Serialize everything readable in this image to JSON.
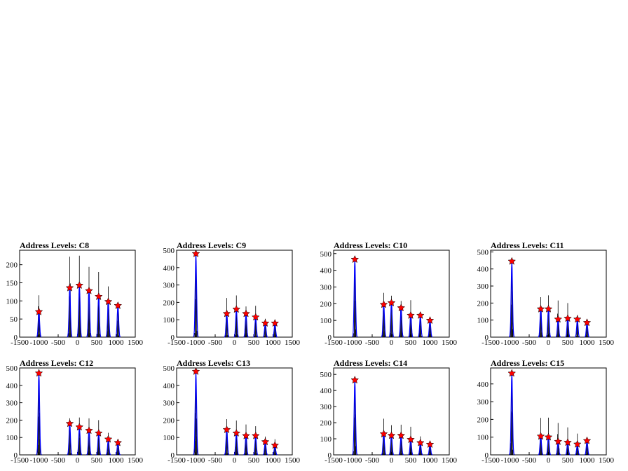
{
  "colors": {
    "histogram_outline": "#000000",
    "histogram_fit": "#0000ff",
    "marker": "#ff0000",
    "frame": "#000000"
  },
  "chart_data": [
    {
      "type": "bar",
      "title": "Address Levels: C8",
      "xlim": [
        -1500,
        1500
      ],
      "ylim": [
        0,
        240
      ],
      "x_ticks": [
        -1500,
        -1000,
        -500,
        0,
        500,
        1000,
        1500
      ],
      "y_ticks": [
        0,
        50,
        100,
        150,
        200
      ],
      "x": [
        -1000,
        -200,
        50,
        300,
        550,
        800,
        1050
      ],
      "peak_max": [
        130,
        222,
        225,
        198,
        180,
        140,
        95
      ],
      "marker_y": [
        70,
        136,
        143,
        128,
        112,
        98,
        87
      ]
    },
    {
      "type": "bar",
      "title": "Address Levels: C9",
      "xlim": [
        -1500,
        1500
      ],
      "ylim": [
        0,
        500
      ],
      "x_ticks": [
        -1500,
        -1000,
        -500,
        0,
        500,
        1000,
        1500
      ],
      "y_ticks": [
        0,
        100,
        200,
        300,
        400,
        500
      ],
      "x": [
        -1000,
        -200,
        50,
        300,
        550,
        800,
        1050
      ],
      "peak_max": [
        480,
        245,
        240,
        200,
        180,
        110,
        95
      ],
      "marker_y": [
        480,
        135,
        160,
        135,
        115,
        80,
        80
      ]
    },
    {
      "type": "bar",
      "title": "Address Levels: C10",
      "xlim": [
        -1500,
        1500
      ],
      "ylim": [
        0,
        520
      ],
      "x_ticks": [
        -1500,
        -1000,
        -500,
        0,
        500,
        1000,
        1500
      ],
      "y_ticks": [
        0,
        100,
        200,
        300,
        400,
        500
      ],
      "x": [
        -950,
        -200,
        0,
        250,
        500,
        750,
        1000
      ],
      "peak_max": [
        465,
        265,
        250,
        240,
        225,
        150,
        115
      ],
      "marker_y": [
        465,
        195,
        205,
        175,
        130,
        130,
        100
      ]
    },
    {
      "type": "bar",
      "title": "Address Levels: C11",
      "xlim": [
        -1500,
        1500
      ],
      "ylim": [
        0,
        510
      ],
      "x_ticks": [
        -1500,
        -1000,
        -500,
        0,
        500,
        1000,
        1500
      ],
      "y_ticks": [
        0,
        100,
        200,
        300,
        400,
        500
      ],
      "x": [
        -950,
        -200,
        0,
        250,
        500,
        750,
        1000
      ],
      "peak_max": [
        445,
        245,
        245,
        215,
        200,
        130,
        100
      ],
      "marker_y": [
        445,
        165,
        165,
        105,
        110,
        105,
        85
      ]
    },
    {
      "type": "bar",
      "title": "Address Levels: C12",
      "xlim": [
        -1500,
        1500
      ],
      "ylim": [
        0,
        500
      ],
      "x_ticks": [
        -1500,
        -1000,
        -500,
        0,
        500,
        1000,
        1500
      ],
      "y_ticks": [
        0,
        100,
        200,
        300,
        400,
        500
      ],
      "x": [
        -1000,
        -200,
        50,
        300,
        550,
        800,
        1050
      ],
      "peak_max": [
        470,
        215,
        215,
        210,
        200,
        130,
        90
      ],
      "marker_y": [
        470,
        180,
        160,
        140,
        125,
        90,
        70
      ]
    },
    {
      "type": "bar",
      "title": "Address Levels: C13",
      "xlim": [
        -1500,
        1500
      ],
      "ylim": [
        0,
        500
      ],
      "x_ticks": [
        -1500,
        -1000,
        -500,
        0,
        500,
        1000,
        1500
      ],
      "y_ticks": [
        0,
        100,
        200,
        300,
        400,
        500
      ],
      "x": [
        -1000,
        -200,
        50,
        300,
        550,
        800,
        1050
      ],
      "peak_max": [
        480,
        215,
        225,
        185,
        170,
        110,
        90
      ],
      "marker_y": [
        480,
        145,
        125,
        110,
        110,
        75,
        55
      ]
    },
    {
      "type": "bar",
      "title": "Address Levels: C14",
      "xlim": [
        -1500,
        1500
      ],
      "ylim": [
        0,
        540
      ],
      "x_ticks": [
        -1500,
        -1000,
        -500,
        0,
        500,
        1000,
        1500
      ],
      "y_ticks": [
        0,
        100,
        200,
        300,
        400,
        500
      ],
      "x": [
        -950,
        -200,
        0,
        250,
        500,
        750,
        1000
      ],
      "peak_max": [
        465,
        225,
        205,
        195,
        175,
        115,
        85
      ],
      "marker_y": [
        465,
        130,
        120,
        120,
        95,
        75,
        65
      ]
    },
    {
      "type": "bar",
      "title": "Address Levels: C15",
      "xlim": [
        -1500,
        1500
      ],
      "ylim": [
        0,
        490
      ],
      "x_ticks": [
        -1500,
        -1000,
        -500,
        0,
        500,
        1000,
        1500
      ],
      "y_ticks": [
        0,
        100,
        200,
        300,
        400
      ],
      "x": [
        -950,
        -200,
        0,
        250,
        500,
        750,
        1000
      ],
      "peak_max": [
        460,
        215,
        210,
        180,
        155,
        120,
        90
      ],
      "marker_y": [
        460,
        105,
        100,
        75,
        70,
        60,
        80
      ]
    }
  ]
}
